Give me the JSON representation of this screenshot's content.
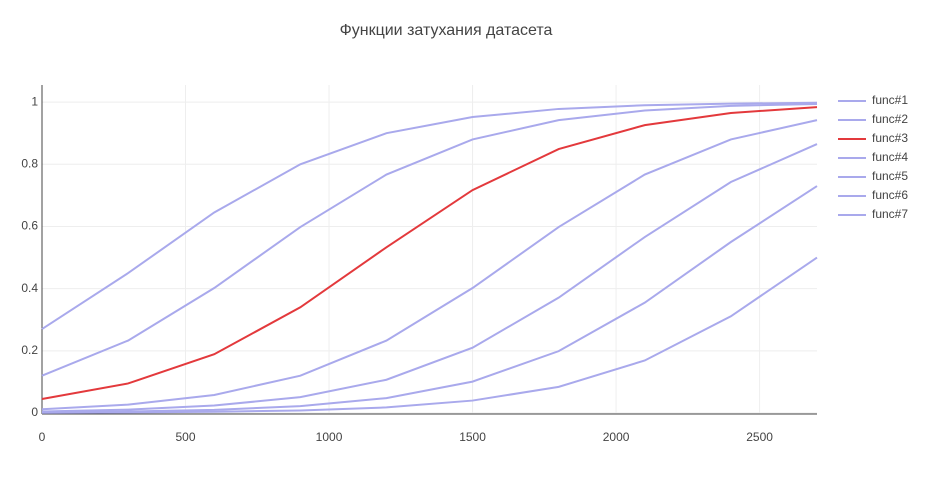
{
  "chart_data": {
    "type": "line",
    "title": "Функции затухания датасета",
    "x": [
      0,
      300,
      600,
      900,
      1200,
      1500,
      1800,
      2100,
      2400,
      2700
    ],
    "series": [
      {
        "name": "func#1",
        "color": "#a9a9ec",
        "values": [
          0.27,
          0.45,
          0.645,
          0.8,
          0.9,
          0.952,
          0.978,
          0.99,
          0.995,
          0.998
        ]
      },
      {
        "name": "func#2",
        "color": "#a9a9ec",
        "values": [
          0.12,
          0.233,
          0.402,
          0.598,
          0.767,
          0.88,
          0.942,
          0.973,
          0.988,
          0.994
        ]
      },
      {
        "name": "func#3",
        "color": "#e3393c",
        "values": [
          0.045,
          0.095,
          0.189,
          0.34,
          0.533,
          0.717,
          0.849,
          0.926,
          0.965,
          0.984
        ]
      },
      {
        "name": "func#4",
        "color": "#a9a9ec",
        "values": [
          0.012,
          0.027,
          0.058,
          0.12,
          0.233,
          0.402,
          0.598,
          0.767,
          0.88,
          0.942
        ]
      },
      {
        "name": "func#5",
        "color": "#a9a9ec",
        "values": [
          0.005,
          0.011,
          0.024,
          0.051,
          0.107,
          0.21,
          0.371,
          0.566,
          0.743,
          0.865
        ]
      },
      {
        "name": "func#6",
        "color": "#a9a9ec",
        "values": [
          0.002,
          0.005,
          0.01,
          0.022,
          0.048,
          0.101,
          0.199,
          0.355,
          0.55,
          0.73
        ]
      },
      {
        "name": "func#7",
        "color": "#a9a9ec",
        "values": [
          0.001,
          0.002,
          0.004,
          0.008,
          0.018,
          0.04,
          0.084,
          0.169,
          0.311,
          0.5
        ]
      }
    ],
    "xlim": [
      0,
      2700
    ],
    "xticks": [
      0,
      500,
      1000,
      1500,
      2000,
      2500
    ],
    "ylim": [
      0,
      1.055
    ],
    "yticks": [
      0,
      0.2,
      0.4,
      0.6,
      0.8,
      1
    ],
    "grid": true,
    "legend": "right"
  }
}
